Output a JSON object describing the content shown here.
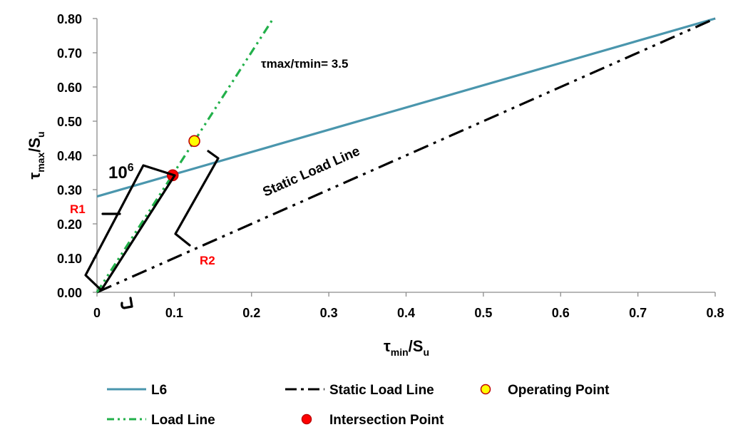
{
  "chart_data": {
    "type": "line",
    "xlabel": "τmin/Su",
    "ylabel": "τmax/Su",
    "xlim": [
      0,
      0.8
    ],
    "ylim": [
      0,
      0.8
    ],
    "x_ticks": [
      "0",
      "0.1",
      "0.2",
      "0.3",
      "0.4",
      "0.5",
      "0.6",
      "0.7",
      "0.8"
    ],
    "y_ticks": [
      "0.00",
      "0.10",
      "0.20",
      "0.30",
      "0.40",
      "0.50",
      "0.60",
      "0.70",
      "0.80"
    ],
    "grid": false,
    "legend_position": "bottom",
    "series": [
      {
        "name": "L6",
        "kind": "line",
        "style": "solid",
        "color": "#4a96ad",
        "x": [
          0,
          0.8
        ],
        "y": [
          0.28,
          0.8
        ]
      },
      {
        "name": "Static Load Line",
        "kind": "line",
        "style": "long-dash-dot-dot",
        "color": "#000000",
        "x": [
          0,
          0.8
        ],
        "y": [
          0,
          0.8
        ]
      },
      {
        "name": "Operating Point",
        "kind": "marker",
        "color": "#ffff00",
        "edge": "#c00000",
        "x": [
          0.126
        ],
        "y": [
          0.442
        ]
      },
      {
        "name": "Load Line",
        "kind": "line",
        "style": "dash-dot-dot",
        "color": "#22b04a",
        "x": [
          0,
          0.228
        ],
        "y": [
          0,
          0.8
        ]
      },
      {
        "name": "Intersection Point",
        "kind": "marker",
        "color": "#ff0000",
        "edge": "#c00000",
        "x": [
          0.098
        ],
        "y": [
          0.342
        ]
      }
    ],
    "annotations": {
      "ratio": "τmax/τmin= 3.5",
      "static_label": "Static  Load Line",
      "life_base": "10",
      "life_exp": "6",
      "r1": "R1",
      "r2": "R2"
    }
  }
}
